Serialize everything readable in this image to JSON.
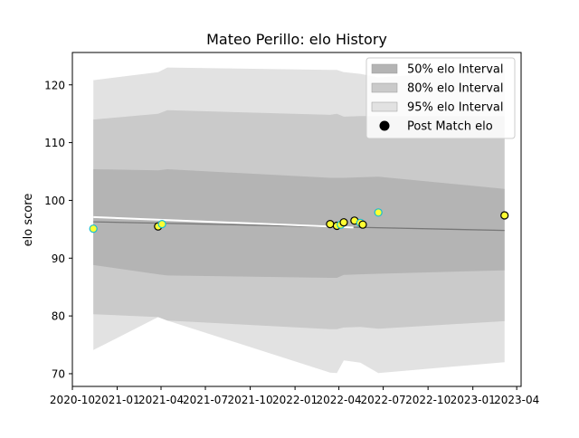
{
  "chart_data": {
    "type": "scatter",
    "title": "Mateo Perillo: elo History",
    "xlabel": "",
    "ylabel": "elo score",
    "xlim": [
      "2020-10-01",
      "2023-04-10"
    ],
    "ylim": [
      67.8,
      125.6
    ],
    "grid": false,
    "legend_position": "top-right",
    "x_ticks": [
      "2020-10",
      "2021-01",
      "2021-04",
      "2021-07",
      "2021-10",
      "2022-01",
      "2022-04",
      "2022-07",
      "2022-10",
      "2023-01",
      "2023-04"
    ],
    "x_tick_labels": [
      "2020-10",
      "2021-01",
      "2021-04",
      "2021-07",
      "2021-10",
      "2022-01",
      "2022-04",
      "2022-07",
      "2022-10",
      "2023-01",
      "2023-04"
    ],
    "y_ticks": [
      70,
      80,
      90,
      100,
      110,
      120
    ],
    "y_tick_labels": [
      "70",
      "80",
      "90",
      "100",
      "110",
      "120"
    ],
    "legend": [
      {
        "key": "band50",
        "label": "50% elo Interval",
        "color": "#b4b4b4"
      },
      {
        "key": "band80",
        "label": "80% elo Interval",
        "color": "#cacaca"
      },
      {
        "key": "band95",
        "label": "95% elo Interval",
        "color": "#e2e2e2"
      },
      {
        "key": "points",
        "label": "Post Match elo",
        "color": "#000000"
      }
    ],
    "band_x": [
      "2020-11-13",
      "2021-03-26",
      "2021-04-14",
      "2022-03-14",
      "2022-03-28",
      "2022-04-11",
      "2022-05-15",
      "2022-06-21",
      "2023-03-07"
    ],
    "bands": {
      "band95": {
        "lower": [
          74.1,
          79.8,
          79.2,
          70.2,
          70.1,
          72.3,
          71.9,
          70.1,
          72.0
        ],
        "upper": [
          120.8,
          122.2,
          123.0,
          122.6,
          122.6,
          122.2,
          121.9,
          121.3,
          122.7
        ]
      },
      "band80": {
        "lower": [
          80.3,
          79.8,
          79.2,
          77.7,
          77.7,
          78.0,
          78.1,
          77.8,
          79.1
        ],
        "upper": [
          114.0,
          115.0,
          115.6,
          114.8,
          115.0,
          114.5,
          114.6,
          114.6,
          114.6
        ]
      },
      "band50": {
        "lower": [
          88.8,
          87.2,
          87.0,
          86.6,
          86.6,
          87.1,
          87.2,
          87.3,
          87.9
        ],
        "upper": [
          105.4,
          105.2,
          105.4,
          103.9,
          103.9,
          103.9,
          104.0,
          104.1,
          102.0
        ]
      }
    },
    "series": [
      {
        "line": "mean",
        "color": "#777777",
        "x": [
          "2020-11-13",
          "2023-03-07"
        ],
        "values": [
          96.3,
          94.8
        ]
      },
      {
        "line": "trend",
        "color": "#ffffff",
        "x": [
          "2020-11-13",
          "2022-05-01"
        ],
        "values": [
          97.1,
          95.3
        ]
      }
    ],
    "points": [
      {
        "x": "2020-11-13",
        "y": 95.1,
        "fill": "#ffff33",
        "edge": "#17becf"
      },
      {
        "x": "2021-03-26",
        "y": 95.5,
        "fill": "#ffff33",
        "edge": "#000000"
      },
      {
        "x": "2021-04-03",
        "y": 95.9,
        "fill": "#ffff33",
        "edge": "#17becf"
      },
      {
        "x": "2022-03-14",
        "y": 95.9,
        "fill": "#ffff33",
        "edge": "#000000"
      },
      {
        "x": "2022-03-28",
        "y": 95.6,
        "fill": "#ffff33",
        "edge": "#000000"
      },
      {
        "x": "2022-04-05",
        "y": 95.8,
        "fill": "#ffff33",
        "edge": "#17becf"
      },
      {
        "x": "2022-04-11",
        "y": 96.2,
        "fill": "#ffff33",
        "edge": "#000000"
      },
      {
        "x": "2022-05-03",
        "y": 96.5,
        "fill": "#ffff33",
        "edge": "#000000"
      },
      {
        "x": "2022-05-15",
        "y": 96.1,
        "fill": "#ffff33",
        "edge": "#17becf"
      },
      {
        "x": "2022-05-20",
        "y": 95.8,
        "fill": "#ffff33",
        "edge": "#000000"
      },
      {
        "x": "2022-06-21",
        "y": 97.9,
        "fill": "#ffff33",
        "edge": "#17becf"
      },
      {
        "x": "2023-03-07",
        "y": 97.4,
        "fill": "#ffff33",
        "edge": "#000000"
      }
    ]
  }
}
